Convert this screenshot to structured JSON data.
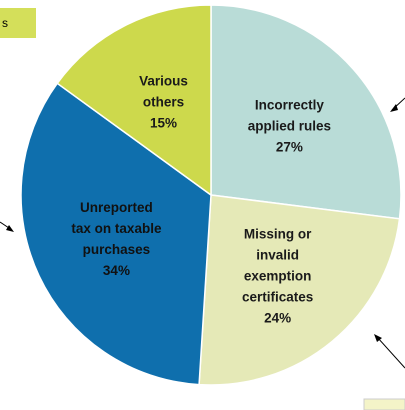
{
  "chart_data": {
    "type": "pie",
    "annotation": "s",
    "categories": [
      "Incorrectly\napplied rules",
      "Missing or\ninvalid\nexemption\ncertificates",
      "Unreported\ntax on taxable\npurchases",
      "Various\nothers"
    ],
    "values": [
      27,
      24,
      34,
      15
    ],
    "value_labels": [
      "27%",
      "24%",
      "34%",
      "15%"
    ],
    "colors": [
      "#b9dcd7",
      "#e5e9b7",
      "#0f6fad",
      "#cdd94c"
    ]
  }
}
